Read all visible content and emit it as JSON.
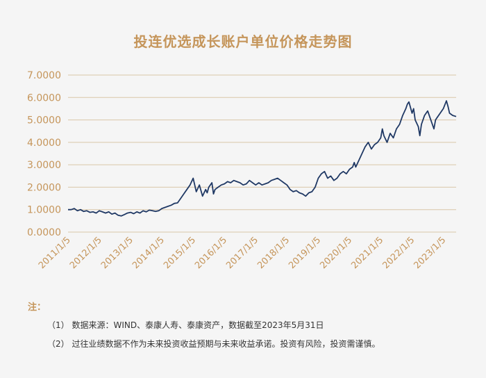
{
  "notes": {
    "title": "注：",
    "items": [
      "（1） 数据来源：WIND、泰康人寿、泰康资产，数据截至2023年5月31日",
      "（2） 过往业绩数据不作为未来投资收益预期与未来收益承诺。投资有风险，投资需谨慎。"
    ]
  },
  "chart_data": {
    "type": "line",
    "title": "投连优选成长账户单位价格走势图",
    "xlabel": "",
    "ylabel": "",
    "ylim": [
      0,
      7
    ],
    "yticks": [
      "0.0000",
      "1.0000",
      "2.0000",
      "3.0000",
      "4.0000",
      "5.0000",
      "6.0000",
      "7.0000"
    ],
    "xticks": [
      "2011/1/5",
      "2012/1/5",
      "2013/1/5",
      "2014/1/5",
      "2015/1/5",
      "2016/1/5",
      "2017/1/5",
      "2018/1/5",
      "2019/1/5",
      "2020/1/5",
      "2021/1/5",
      "2022/1/5",
      "2023/1/5"
    ],
    "xlim": [
      2011.0,
      2023.41
    ],
    "grid": "horizontal",
    "colors": {
      "line": "#1f3864",
      "grid": "#d9c6a8",
      "accent": "#c5955a"
    },
    "series": [
      {
        "x": [
          2011.0,
          2011.1,
          2011.2,
          2011.3,
          2011.4,
          2011.5,
          2011.6,
          2011.7,
          2011.8,
          2011.9,
          2012.0,
          2012.1,
          2012.2,
          2012.3,
          2012.4,
          2012.5,
          2012.6,
          2012.7,
          2012.8,
          2012.9,
          2013.0,
          2013.1,
          2013.2,
          2013.3,
          2013.4,
          2013.5,
          2013.6,
          2013.7,
          2013.8,
          2013.9,
          2014.0,
          2014.1,
          2014.2,
          2014.3,
          2014.4,
          2014.5,
          2014.6,
          2014.7,
          2014.8,
          2014.9,
          2015.0,
          2015.1,
          2015.2,
          2015.3,
          2015.4,
          2015.45,
          2015.5,
          2015.55,
          2015.6,
          2015.65,
          2015.7,
          2015.8,
          2015.9,
          2016.0,
          2016.05,
          2016.1,
          2016.2,
          2016.3,
          2016.4,
          2016.5,
          2016.6,
          2016.7,
          2016.8,
          2016.9,
          2017.0,
          2017.1,
          2017.2,
          2017.3,
          2017.4,
          2017.5,
          2017.6,
          2017.7,
          2017.8,
          2017.9,
          2018.0,
          2018.05,
          2018.1,
          2018.2,
          2018.3,
          2018.4,
          2018.5,
          2018.6,
          2018.7,
          2018.8,
          2018.9,
          2019.0,
          2019.1,
          2019.2,
          2019.3,
          2019.4,
          2019.5,
          2019.6,
          2019.7,
          2019.8,
          2019.9,
          2020.0,
          2020.1,
          2020.15,
          2020.2,
          2020.3,
          2020.4,
          2020.5,
          2020.6,
          2020.7,
          2020.8,
          2020.9,
          2021.0,
          2021.05,
          2021.1,
          2021.2,
          2021.3,
          2021.4,
          2021.5,
          2021.6,
          2021.7,
          2021.8,
          2021.85,
          2021.9,
          2022.0,
          2022.05,
          2022.1,
          2022.2,
          2022.25,
          2022.3,
          2022.4,
          2022.5,
          2022.6,
          2022.7,
          2022.75,
          2022.8,
          2022.9,
          2023.0,
          2023.1,
          2023.15,
          2023.2,
          2023.3,
          2023.41
        ],
        "values": [
          1.0,
          1.0,
          1.05,
          0.95,
          1.0,
          0.92,
          0.95,
          0.88,
          0.9,
          0.85,
          0.95,
          0.9,
          0.85,
          0.9,
          0.8,
          0.85,
          0.75,
          0.72,
          0.78,
          0.85,
          0.88,
          0.82,
          0.9,
          0.85,
          0.95,
          0.9,
          0.98,
          0.95,
          0.92,
          0.95,
          1.05,
          1.1,
          1.15,
          1.2,
          1.28,
          1.3,
          1.5,
          1.7,
          1.9,
          2.1,
          2.4,
          1.8,
          2.1,
          1.6,
          1.9,
          1.75,
          2.0,
          2.1,
          2.2,
          1.7,
          1.9,
          2.0,
          2.1,
          2.15,
          2.2,
          2.25,
          2.2,
          2.3,
          2.25,
          2.2,
          2.1,
          2.15,
          2.3,
          2.2,
          2.1,
          2.2,
          2.1,
          2.15,
          2.2,
          2.3,
          2.35,
          2.4,
          2.3,
          2.2,
          2.1,
          2.0,
          1.9,
          1.8,
          1.85,
          1.75,
          1.7,
          1.6,
          1.75,
          1.8,
          2.0,
          2.4,
          2.6,
          2.7,
          2.4,
          2.5,
          2.3,
          2.4,
          2.6,
          2.7,
          2.6,
          2.8,
          2.9,
          3.1,
          2.9,
          3.2,
          3.5,
          3.8,
          4.0,
          3.7,
          3.9,
          4.0,
          4.2,
          4.6,
          4.3,
          4.0,
          4.4,
          4.2,
          4.6,
          4.8,
          5.2,
          5.5,
          5.7,
          5.8,
          5.3,
          5.5,
          5.0,
          4.7,
          4.3,
          4.8,
          5.2,
          5.4,
          5.0,
          4.6,
          5.0,
          5.1,
          5.3,
          5.5,
          5.85,
          5.6,
          5.3,
          5.2,
          5.15
        ]
      }
    ]
  }
}
